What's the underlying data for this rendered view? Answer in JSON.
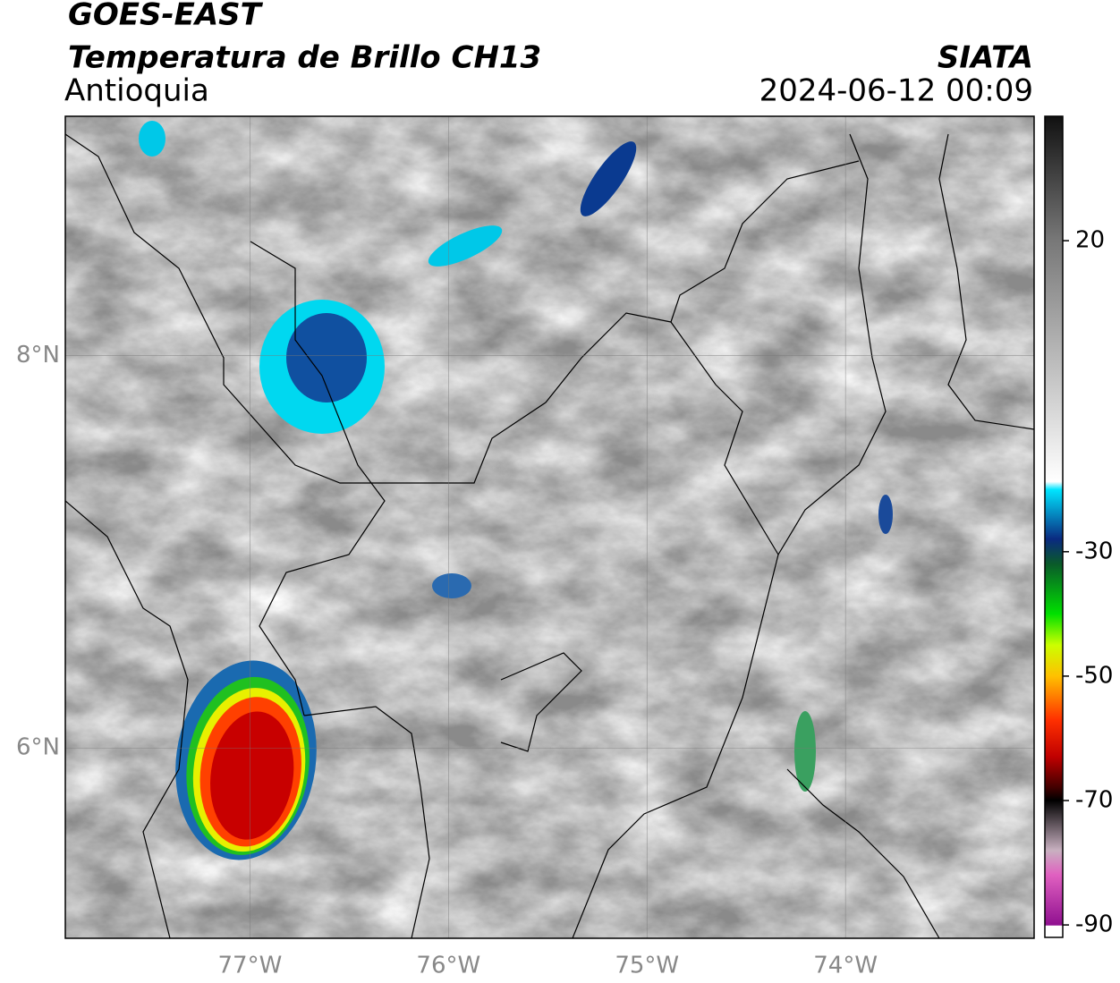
{
  "header": {
    "title": "GOES-EAST",
    "subtitle": "Temperatura de Brillo CH13",
    "region": "Antioquia",
    "source": "SIATA",
    "timestamp": "2024-06-12 00:09"
  },
  "map": {
    "xlim": [
      -77.93,
      -73.05
    ],
    "ylim": [
      5.03,
      9.22
    ],
    "xticks": [
      {
        "value": -77,
        "label": "77°W"
      },
      {
        "value": -76,
        "label": "76°W"
      },
      {
        "value": -75,
        "label": "75°W"
      },
      {
        "value": -74,
        "label": "74°W"
      }
    ],
    "yticks": [
      {
        "value": 8,
        "label": "8°N"
      },
      {
        "value": 6,
        "label": "6°N"
      }
    ]
  },
  "colorbar": {
    "lim": [
      -92,
      40
    ],
    "ticks": [
      20,
      -30,
      -50,
      -70,
      -90
    ]
  }
}
